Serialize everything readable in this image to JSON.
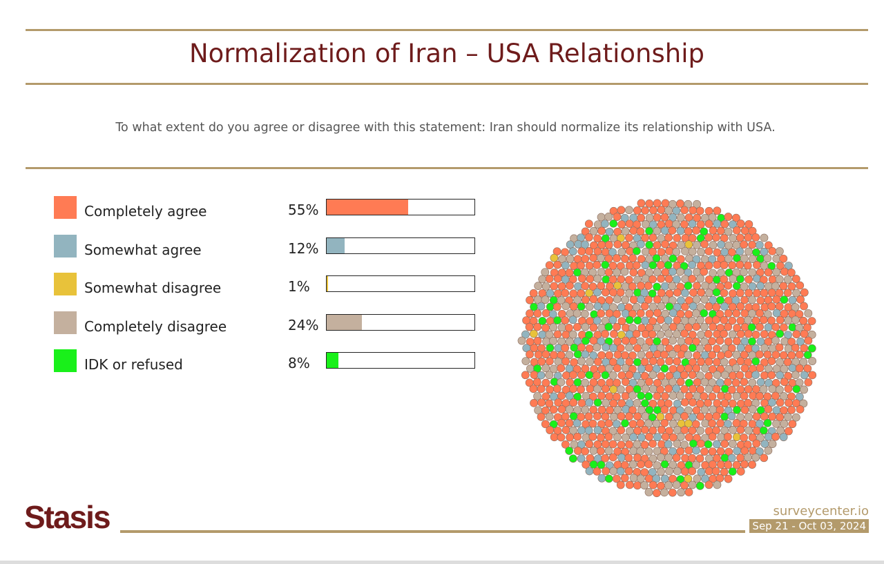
{
  "title": "Normalization of Iran – USA Relationship",
  "question": "To what extent do you agree or disagree with this statement: Iran should normalize its relationship with USA.",
  "chart_data": {
    "type": "bar",
    "categories": [
      "Completely agree",
      "Somewhat agree",
      "Somewhat disagree",
      "Completely disagree",
      "IDK or refused"
    ],
    "values": [
      55,
      12,
      1,
      24,
      8
    ],
    "value_labels": [
      "55%",
      "12%",
      "1%",
      "24%",
      "8%"
    ],
    "colors": [
      "#ff7b54",
      "#92b4bf",
      "#e8c23a",
      "#c4b09e",
      "#19f01a"
    ],
    "ylim": [
      0,
      100
    ],
    "legend": "left",
    "companion": "circular dot cluster with dot colors in proportion to values"
  },
  "footer": {
    "logo": "Stasis",
    "site": "surveycenter.io",
    "date": "Sep 21 - Oct 03, 2024"
  }
}
